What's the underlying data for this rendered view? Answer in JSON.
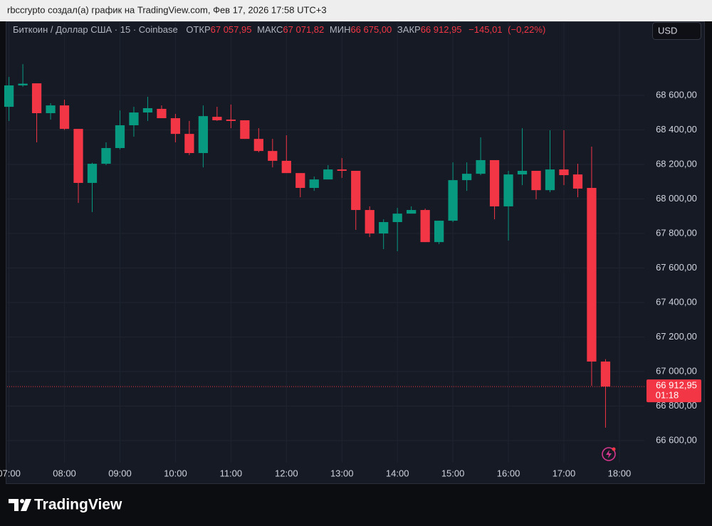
{
  "chart_data": {
    "type": "candlestick",
    "attribution": "rbccrypto создал(а) график на TradingView.com, Фев 17, 2026 17:58 UTC+3",
    "symbol": "Биткоин / Доллар США · 15 · Coinbase",
    "ohlc_names": {
      "open": "ОТКР",
      "high": "МАКС",
      "low": "МИН",
      "close": "ЗАКР"
    },
    "ohlc_labels": {
      "open": "67 057,95",
      "high": "67 071,82",
      "low": "66 675,00",
      "close": "66 912,95"
    },
    "change": {
      "value": -145.01,
      "label": "−145,01"
    },
    "change_percent": {
      "value": -0.22,
      "label": "(−0,22%)"
    },
    "currency": "USD",
    "brand": "TradingView",
    "up_color": "#089981",
    "down_color": "#f23645",
    "grid": true,
    "x": [
      "07:00",
      "07:15",
      "07:30",
      "07:45",
      "08:00",
      "08:15",
      "08:30",
      "08:45",
      "09:00",
      "09:15",
      "09:30",
      "09:45",
      "10:00",
      "10:15",
      "10:30",
      "10:45",
      "11:00",
      "11:15",
      "11:30",
      "11:45",
      "12:00",
      "12:15",
      "12:30",
      "12:45",
      "13:00",
      "13:15",
      "13:30",
      "13:45",
      "14:00",
      "14:15",
      "14:30",
      "14:45",
      "15:00",
      "15:15",
      "15:30",
      "15:45",
      "16:00",
      "16:15",
      "16:30",
      "16:45",
      "17:00",
      "17:15",
      "17:30",
      "17:45"
    ],
    "open": [
      68534,
      68658,
      68670,
      68497,
      68542,
      68406,
      68093,
      68204,
      68295,
      68427,
      68501,
      68522,
      68468,
      68377,
      68266,
      68476,
      68460,
      68456,
      68348,
      68278,
      68221,
      68150,
      68064,
      68113,
      68171,
      68163,
      67936,
      67800,
      67866,
      67915,
      67936,
      67750,
      67874,
      68109,
      68146,
      68225,
      67957,
      68142,
      68163,
      68051,
      68171,
      68142,
      68064,
      67057.95
    ],
    "high": [
      68707,
      68781,
      68670,
      68555,
      68575,
      68406,
      68210,
      68328,
      68513,
      68534,
      68592,
      68542,
      68493,
      68452,
      68542,
      68534,
      68547,
      68456,
      68410,
      68348,
      68369,
      68150,
      68130,
      68196,
      68237,
      68163,
      67957,
      67882,
      67948,
      67957,
      67944,
      67874,
      68212,
      68212,
      68357,
      68225,
      68163,
      68410,
      68163,
      68398,
      68398,
      68204,
      68303,
      67071.82
    ],
    "low": [
      68452,
      68650,
      68328,
      68460,
      68400,
      67977,
      67924,
      68196,
      68287,
      68361,
      68452,
      68468,
      68328,
      68254,
      68183,
      68452,
      68410,
      68348,
      68270,
      68183,
      68150,
      68010,
      68047,
      68113,
      68122,
      67821,
      67779,
      67709,
      67697,
      67915,
      67750,
      67738,
      67866,
      68047,
      68138,
      67882,
      67759,
      68080,
      67998,
      68039,
      68080,
      68010,
      66917,
      66675
    ],
    "close": [
      68658,
      68668,
      68497,
      68542,
      68406,
      68093,
      68204,
      68295,
      68427,
      68501,
      68526,
      68468,
      68377,
      68266,
      68480,
      68456,
      68452,
      68348,
      68278,
      68221,
      68150,
      68064,
      68113,
      68171,
      68163,
      67936,
      67800,
      67866,
      67915,
      67936,
      67750,
      67874,
      68109,
      68146,
      68225,
      67957,
      68142,
      68163,
      68051,
      68171,
      68138,
      68060,
      67057.96,
      66912.95
    ],
    "xlim": [
      "06:58",
      "18:27"
    ],
    "xticks": [
      "07:00",
      "08:00",
      "09:00",
      "10:00",
      "11:00",
      "12:00",
      "13:00",
      "14:00",
      "15:00",
      "16:00",
      "17:00",
      "18:00"
    ],
    "ylim": [
      66472,
      68926
    ],
    "yticks": [
      {
        "value": 66600,
        "label": "66 600,00"
      },
      {
        "value": 66800,
        "label": "66 800,00"
      },
      {
        "value": 67000,
        "label": "67 000,00"
      },
      {
        "value": 67200,
        "label": "67 200,00"
      },
      {
        "value": 67400,
        "label": "67 400,00"
      },
      {
        "value": 67600,
        "label": "67 600,00"
      },
      {
        "value": 67800,
        "label": "67 800,00"
      },
      {
        "value": 68000,
        "label": "68 000,00"
      },
      {
        "value": 68200,
        "label": "68 200,00"
      },
      {
        "value": 68400,
        "label": "68 400,00"
      },
      {
        "value": 68600,
        "label": "68 600,00"
      }
    ],
    "current_price": {
      "value": 66912.95,
      "label": "66 912,95"
    },
    "countdown": "01:18"
  }
}
